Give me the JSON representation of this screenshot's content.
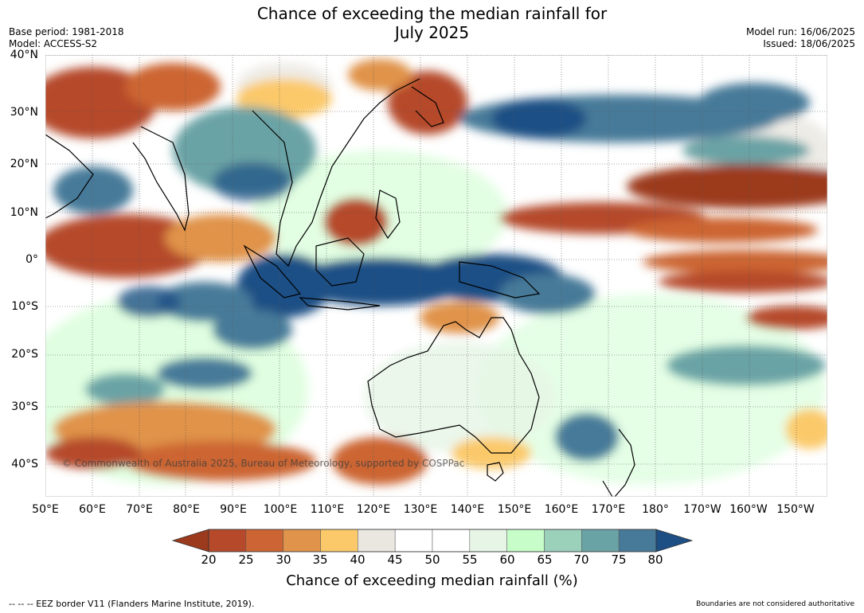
{
  "title": {
    "line1": "Chance of exceeding the median rainfall for",
    "line2": "July 2025"
  },
  "meta": {
    "base_period": "Base period: 1981-2018",
    "model": "Model: ACCESS-S2",
    "model_run": "Model run: 16/06/2025",
    "issued": "Issued: 18/06/2025"
  },
  "latitude_labels": [
    "40°N",
    "30°N",
    "20°N",
    "10°N",
    "0°",
    "10°S",
    "20°S",
    "30°S",
    "40°S"
  ],
  "longitude_labels": [
    "50°E",
    "60°E",
    "70°E",
    "80°E",
    "90°E",
    "100°E",
    "110°E",
    "120°E",
    "130°E",
    "140°E",
    "150°E",
    "160°E",
    "170°E",
    "180°",
    "170°W",
    "160°W",
    "150°W"
  ],
  "copyright": "© Commonwealth of Australia 2025, Bureau of Meteorology, supported by COSPPac",
  "colorbar": {
    "ticks": [
      "20",
      "25",
      "30",
      "35",
      "40",
      "45",
      "50",
      "55",
      "60",
      "65",
      "70",
      "75",
      "80"
    ],
    "colors": [
      "#9c3a1e",
      "#b5492a",
      "#cc6533",
      "#e0934a",
      "#fbc96a",
      "#eae7e0",
      "#ffffff",
      "#ffffff",
      "#e6f5e6",
      "#c6fdc8",
      "#9bd0bb",
      "#6aa3a5",
      "#477a99",
      "#1d4f85"
    ],
    "label": "Chance of exceeding median rainfall (%)"
  },
  "footer": {
    "eez_note": "--  --  -- EEZ border V11 (Flanders Marine Institute, 2019).",
    "disclaimer": "Boundaries are not considered authoritative"
  }
}
